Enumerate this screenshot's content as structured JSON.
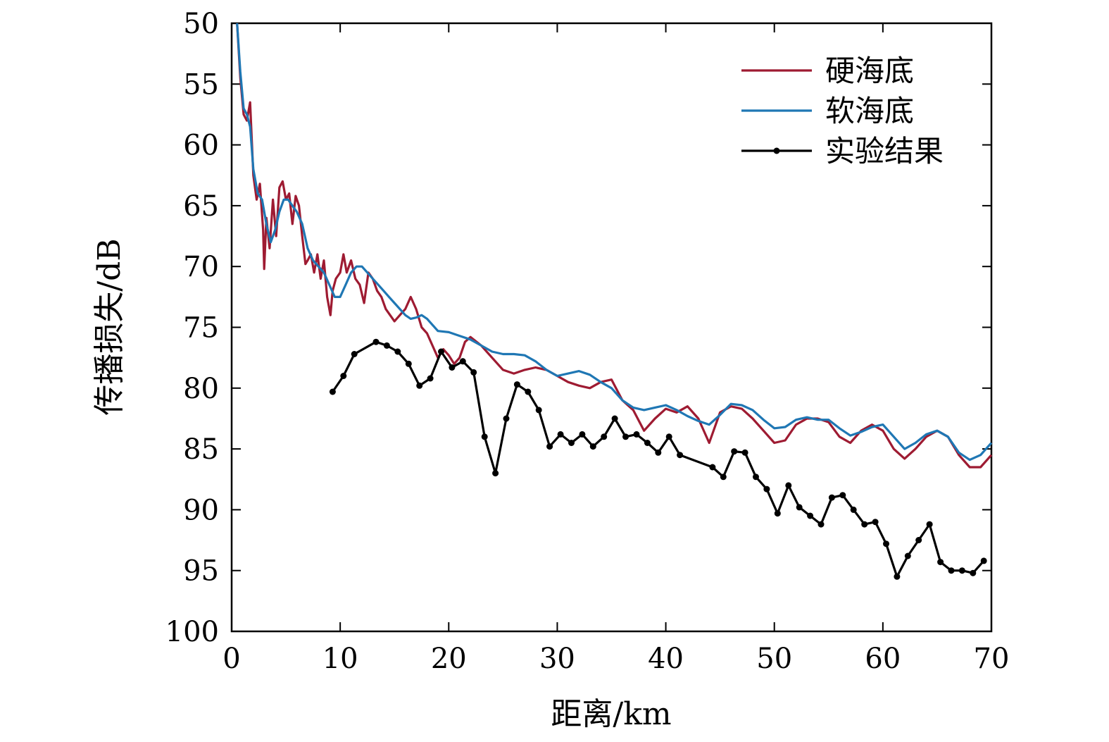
{
  "chart_data": {
    "type": "line",
    "title": "",
    "xlabel": "距离/km",
    "ylabel": "传播损失/dB",
    "xlim": [
      0,
      70
    ],
    "ylim": [
      50,
      100
    ],
    "y_inverted": true,
    "xticks": [
      0,
      10,
      20,
      30,
      40,
      50,
      60,
      70
    ],
    "yticks": [
      50,
      55,
      60,
      65,
      70,
      75,
      80,
      85,
      90,
      95,
      100
    ],
    "grid": false,
    "legend_position": "top-right",
    "series": [
      {
        "name": "硬海底",
        "color": "#9e1b32",
        "marker": "none",
        "x": [
          0.5,
          0.8,
          1.1,
          1.4,
          1.7,
          2.0,
          2.3,
          2.6,
          2.9,
          3.0,
          3.2,
          3.5,
          3.8,
          4.1,
          4.4,
          4.7,
          5.0,
          5.3,
          5.6,
          5.9,
          6.2,
          6.5,
          6.8,
          7.0,
          7.3,
          7.6,
          7.9,
          8.2,
          8.5,
          8.8,
          9.1,
          9.3,
          9.6,
          10.0,
          10.3,
          10.6,
          11.0,
          11.4,
          11.8,
          12.2,
          12.6,
          13.0,
          13.4,
          13.8,
          14.2,
          14.6,
          15.0,
          15.5,
          16.0,
          16.5,
          17.0,
          17.5,
          18.0,
          18.5,
          19.0,
          19.5,
          20.0,
          20.5,
          21.0,
          21.5,
          22.0,
          23.0,
          24.0,
          25.0,
          26.0,
          27.0,
          28.0,
          29.0,
          30.0,
          31.0,
          32.0,
          33.0,
          34.0,
          35.0,
          36.0,
          37.0,
          38.0,
          39.0,
          40.0,
          41.0,
          42.0,
          43.0,
          44.0,
          45.0,
          46.0,
          47.0,
          48.0,
          49.0,
          50.0,
          51.0,
          52.0,
          53.0,
          54.0,
          55.0,
          56.0,
          57.0,
          58.0,
          59.0,
          60.0,
          61.0,
          62.0,
          63.0,
          64.0,
          65.0,
          66.0,
          67.0,
          68.0,
          69.0,
          70.0
        ],
        "y": [
          50.0,
          54.5,
          57.5,
          58.0,
          56.5,
          62.5,
          64.5,
          63.2,
          67.0,
          70.2,
          66.0,
          68.5,
          64.5,
          67.5,
          63.5,
          63.0,
          64.5,
          64.0,
          66.5,
          64.2,
          65.0,
          67.5,
          69.8,
          69.5,
          69.0,
          70.5,
          69.0,
          71.0,
          69.5,
          72.5,
          74.0,
          72.0,
          71.0,
          70.5,
          69.0,
          70.5,
          69.5,
          71.0,
          71.5,
          73.0,
          70.5,
          71.0,
          72.0,
          72.5,
          73.5,
          74.0,
          74.5,
          74.0,
          73.5,
          72.5,
          73.5,
          75.0,
          75.5,
          76.5,
          77.5,
          76.8,
          77.3,
          78.0,
          77.5,
          76.2,
          75.8,
          76.5,
          77.5,
          78.5,
          78.8,
          78.5,
          78.3,
          78.5,
          79.0,
          79.5,
          79.8,
          80.0,
          79.5,
          79.3,
          81.0,
          81.8,
          83.5,
          82.5,
          81.7,
          82.0,
          81.5,
          82.5,
          84.5,
          82.0,
          81.5,
          81.7,
          82.5,
          83.5,
          84.5,
          84.3,
          83.0,
          82.5,
          82.5,
          82.8,
          84.0,
          84.5,
          83.5,
          83.0,
          83.5,
          85.0,
          85.8,
          85.0,
          84.0,
          83.5,
          84.0,
          85.5,
          86.5,
          86.5,
          85.5
        ]
      },
      {
        "name": "软海底",
        "color": "#1f77b4",
        "marker": "none",
        "x": [
          0.5,
          0.8,
          1.1,
          1.4,
          1.7,
          2.0,
          2.4,
          2.8,
          3.2,
          3.6,
          4.0,
          4.4,
          4.8,
          5.2,
          5.6,
          6.0,
          6.5,
          7.0,
          7.5,
          8.0,
          8.5,
          9.0,
          9.5,
          10.0,
          10.5,
          11.0,
          11.5,
          12.0,
          12.5,
          13.0,
          13.5,
          14.0,
          14.5,
          15.0,
          15.5,
          16.0,
          16.5,
          17.0,
          17.5,
          18.0,
          19.0,
          20.0,
          21.0,
          22.0,
          23.0,
          24.0,
          25.0,
          26.0,
          27.0,
          28.0,
          29.0,
          30.0,
          31.0,
          32.0,
          33.0,
          34.0,
          35.0,
          36.0,
          37.0,
          38.0,
          39.0,
          40.0,
          41.0,
          42.0,
          43.0,
          44.0,
          45.0,
          46.0,
          47.0,
          48.0,
          49.0,
          50.0,
          51.0,
          52.0,
          53.0,
          54.0,
          55.0,
          56.0,
          57.0,
          58.0,
          59.0,
          60.0,
          61.0,
          62.0,
          63.0,
          64.0,
          65.0,
          66.0,
          67.0,
          68.0,
          69.0,
          70.0
        ],
        "y": [
          50.0,
          54.0,
          57.0,
          57.5,
          58.5,
          62.0,
          64.0,
          64.5,
          66.5,
          68.0,
          67.0,
          65.5,
          64.5,
          64.5,
          65.0,
          65.5,
          66.5,
          68.5,
          69.5,
          70.0,
          70.5,
          71.5,
          72.5,
          72.5,
          71.5,
          70.5,
          70.0,
          70.0,
          70.5,
          71.0,
          71.5,
          72.0,
          72.5,
          73.0,
          73.5,
          74.0,
          74.3,
          74.2,
          74.0,
          74.3,
          75.3,
          75.4,
          75.7,
          76.0,
          76.5,
          77.0,
          77.2,
          77.2,
          77.3,
          77.8,
          78.5,
          79.0,
          78.8,
          78.6,
          78.9,
          79.5,
          80.0,
          81.0,
          81.6,
          81.8,
          81.6,
          81.4,
          81.8,
          82.3,
          82.7,
          83.0,
          82.2,
          81.3,
          81.4,
          81.8,
          82.6,
          83.3,
          83.2,
          82.6,
          82.4,
          82.6,
          82.6,
          83.3,
          83.9,
          83.6,
          83.2,
          83.0,
          84.0,
          85.0,
          84.5,
          83.8,
          83.5,
          84.0,
          85.3,
          85.9,
          85.5,
          84.5
        ]
      },
      {
        "name": "实验结果",
        "color": "#000000",
        "marker": "dot",
        "x": [
          9.3,
          10.3,
          11.3,
          13.3,
          14.3,
          15.3,
          16.3,
          17.3,
          18.3,
          19.3,
          20.3,
          21.3,
          22.3,
          23.3,
          24.3,
          25.3,
          26.3,
          27.3,
          28.3,
          29.3,
          30.3,
          31.3,
          32.3,
          33.3,
          34.3,
          35.3,
          36.3,
          37.3,
          38.3,
          39.3,
          40.3,
          41.3,
          44.3,
          45.3,
          46.3,
          47.3,
          48.3,
          49.3,
          50.3,
          51.3,
          52.3,
          53.3,
          54.3,
          55.3,
          56.3,
          57.3,
          58.3,
          59.3,
          60.3,
          61.3,
          62.3,
          63.3,
          64.3,
          65.3,
          66.3,
          67.3,
          68.3,
          69.3
        ],
        "y": [
          80.3,
          79.0,
          77.2,
          76.2,
          76.5,
          77.0,
          78.0,
          79.8,
          79.2,
          77.0,
          78.3,
          77.8,
          78.7,
          84.0,
          87.0,
          82.5,
          79.7,
          80.3,
          81.8,
          84.8,
          83.8,
          84.5,
          83.8,
          84.8,
          84.0,
          82.5,
          84.0,
          83.8,
          84.5,
          85.3,
          84.0,
          85.5,
          86.5,
          87.3,
          85.2,
          85.3,
          87.3,
          88.3,
          90.3,
          88.0,
          89.8,
          90.5,
          91.2,
          89.0,
          88.8,
          90.0,
          91.2,
          91.0,
          92.8,
          95.5,
          93.8,
          92.5,
          91.2,
          94.3,
          95.0,
          95.0,
          95.2,
          94.2
        ]
      }
    ]
  }
}
